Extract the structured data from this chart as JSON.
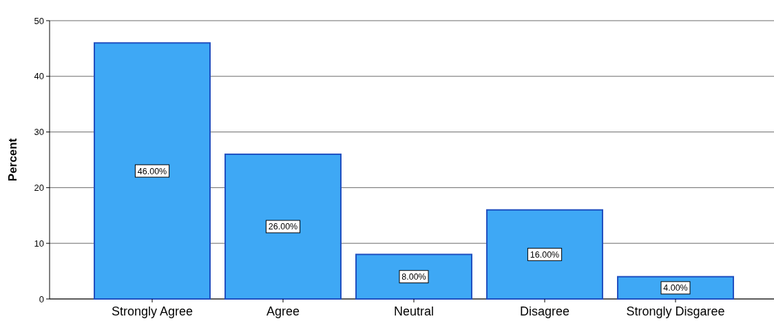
{
  "chart_data": {
    "type": "bar",
    "ylabel": "Percent",
    "categories": [
      "Strongly Agree",
      "Agree",
      "Neutral",
      "Disagree",
      "Strongly Disgaree"
    ],
    "values": [
      46,
      26,
      8,
      16,
      4
    ],
    "value_labels": [
      "46.00%",
      "26.00%",
      "8.00%",
      "16.00%",
      "4.00%"
    ],
    "color": "#3ea8f5",
    "ylim": [
      0,
      50
    ],
    "yticks": [
      0,
      10,
      20,
      30,
      40,
      50
    ],
    "grid": "y"
  }
}
